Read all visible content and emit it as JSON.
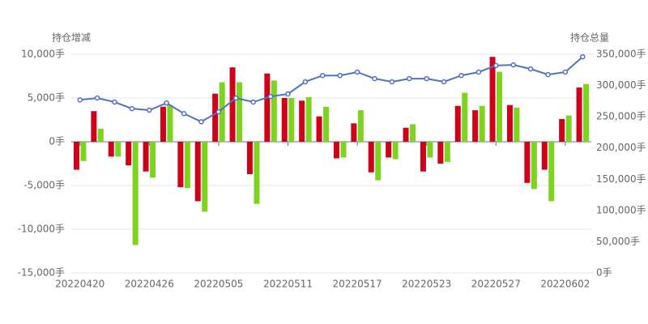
{
  "chart_data": {
    "type": "bar-line",
    "y_label": "持仓增减",
    "y2_label": "持仓总量",
    "categories": [
      "20220420",
      null,
      null,
      null,
      "20220426",
      null,
      null,
      null,
      "20220505",
      null,
      null,
      null,
      "20220511",
      null,
      null,
      null,
      "20220517",
      null,
      null,
      null,
      "20220523",
      null,
      null,
      null,
      "20220527",
      null,
      null,
      null,
      "20220602",
      null
    ],
    "series": [
      {
        "type": "bar",
        "color": "#d0021b",
        "values": [
          -3200,
          3500,
          -1700,
          -2700,
          -3400,
          4000,
          -5200,
          -6800,
          5500,
          8500,
          -3700,
          7800,
          5000,
          4700,
          2900,
          -1900,
          2100,
          -3500,
          -1800,
          1600,
          -3400,
          -2500,
          4100,
          3600,
          9700,
          4200,
          -4700,
          -3200,
          2600,
          6200
        ]
      },
      {
        "type": "bar",
        "color": "#7ed321",
        "values": [
          -2200,
          1500,
          -1700,
          -11800,
          -4100,
          4200,
          -5300,
          -8000,
          6800,
          6800,
          -7100,
          7000,
          5000,
          5100,
          4000,
          -1800,
          3600,
          -4400,
          -2000,
          2000,
          -1800,
          -2300,
          5600,
          4100,
          8000,
          3900,
          -5400,
          -6800,
          3000,
          6600
        ]
      },
      {
        "type": "line",
        "axis": "y2",
        "color": "#5470c6",
        "values": [
          277000,
          280000,
          273500,
          263000,
          260500,
          272000,
          255000,
          242000,
          258000,
          280000,
          273500,
          282500,
          286500,
          306000,
          316000,
          316000,
          321500,
          311000,
          306000,
          311000,
          311000,
          306000,
          316000,
          321500,
          332000,
          333000,
          326500,
          317500,
          321500,
          346000
        ]
      }
    ],
    "ylim": [
      -15000,
      10000
    ],
    "yticks": [
      {
        "value": -15000,
        "label": "-15,000手"
      },
      {
        "value": -10000,
        "label": "-10,000手"
      },
      {
        "value": -5000,
        "label": "-5,000手"
      },
      {
        "value": 0,
        "label": "0手"
      },
      {
        "value": 5000,
        "label": "5,000手"
      },
      {
        "value": 10000,
        "label": "10,000手"
      }
    ],
    "y2lim": [
      0,
      350000
    ],
    "y2ticks": [
      {
        "value": 0,
        "label": "0手"
      },
      {
        "value": 50000,
        "label": "50,000手"
      },
      {
        "value": 100000,
        "label": "100,000手"
      },
      {
        "value": 150000,
        "label": "150,000手"
      },
      {
        "value": 200000,
        "label": "200,000手"
      },
      {
        "value": 250000,
        "label": "250,000手"
      },
      {
        "value": 300000,
        "label": "300,000手"
      },
      {
        "value": 350000,
        "label": "350,000手"
      }
    ],
    "grid": true
  }
}
